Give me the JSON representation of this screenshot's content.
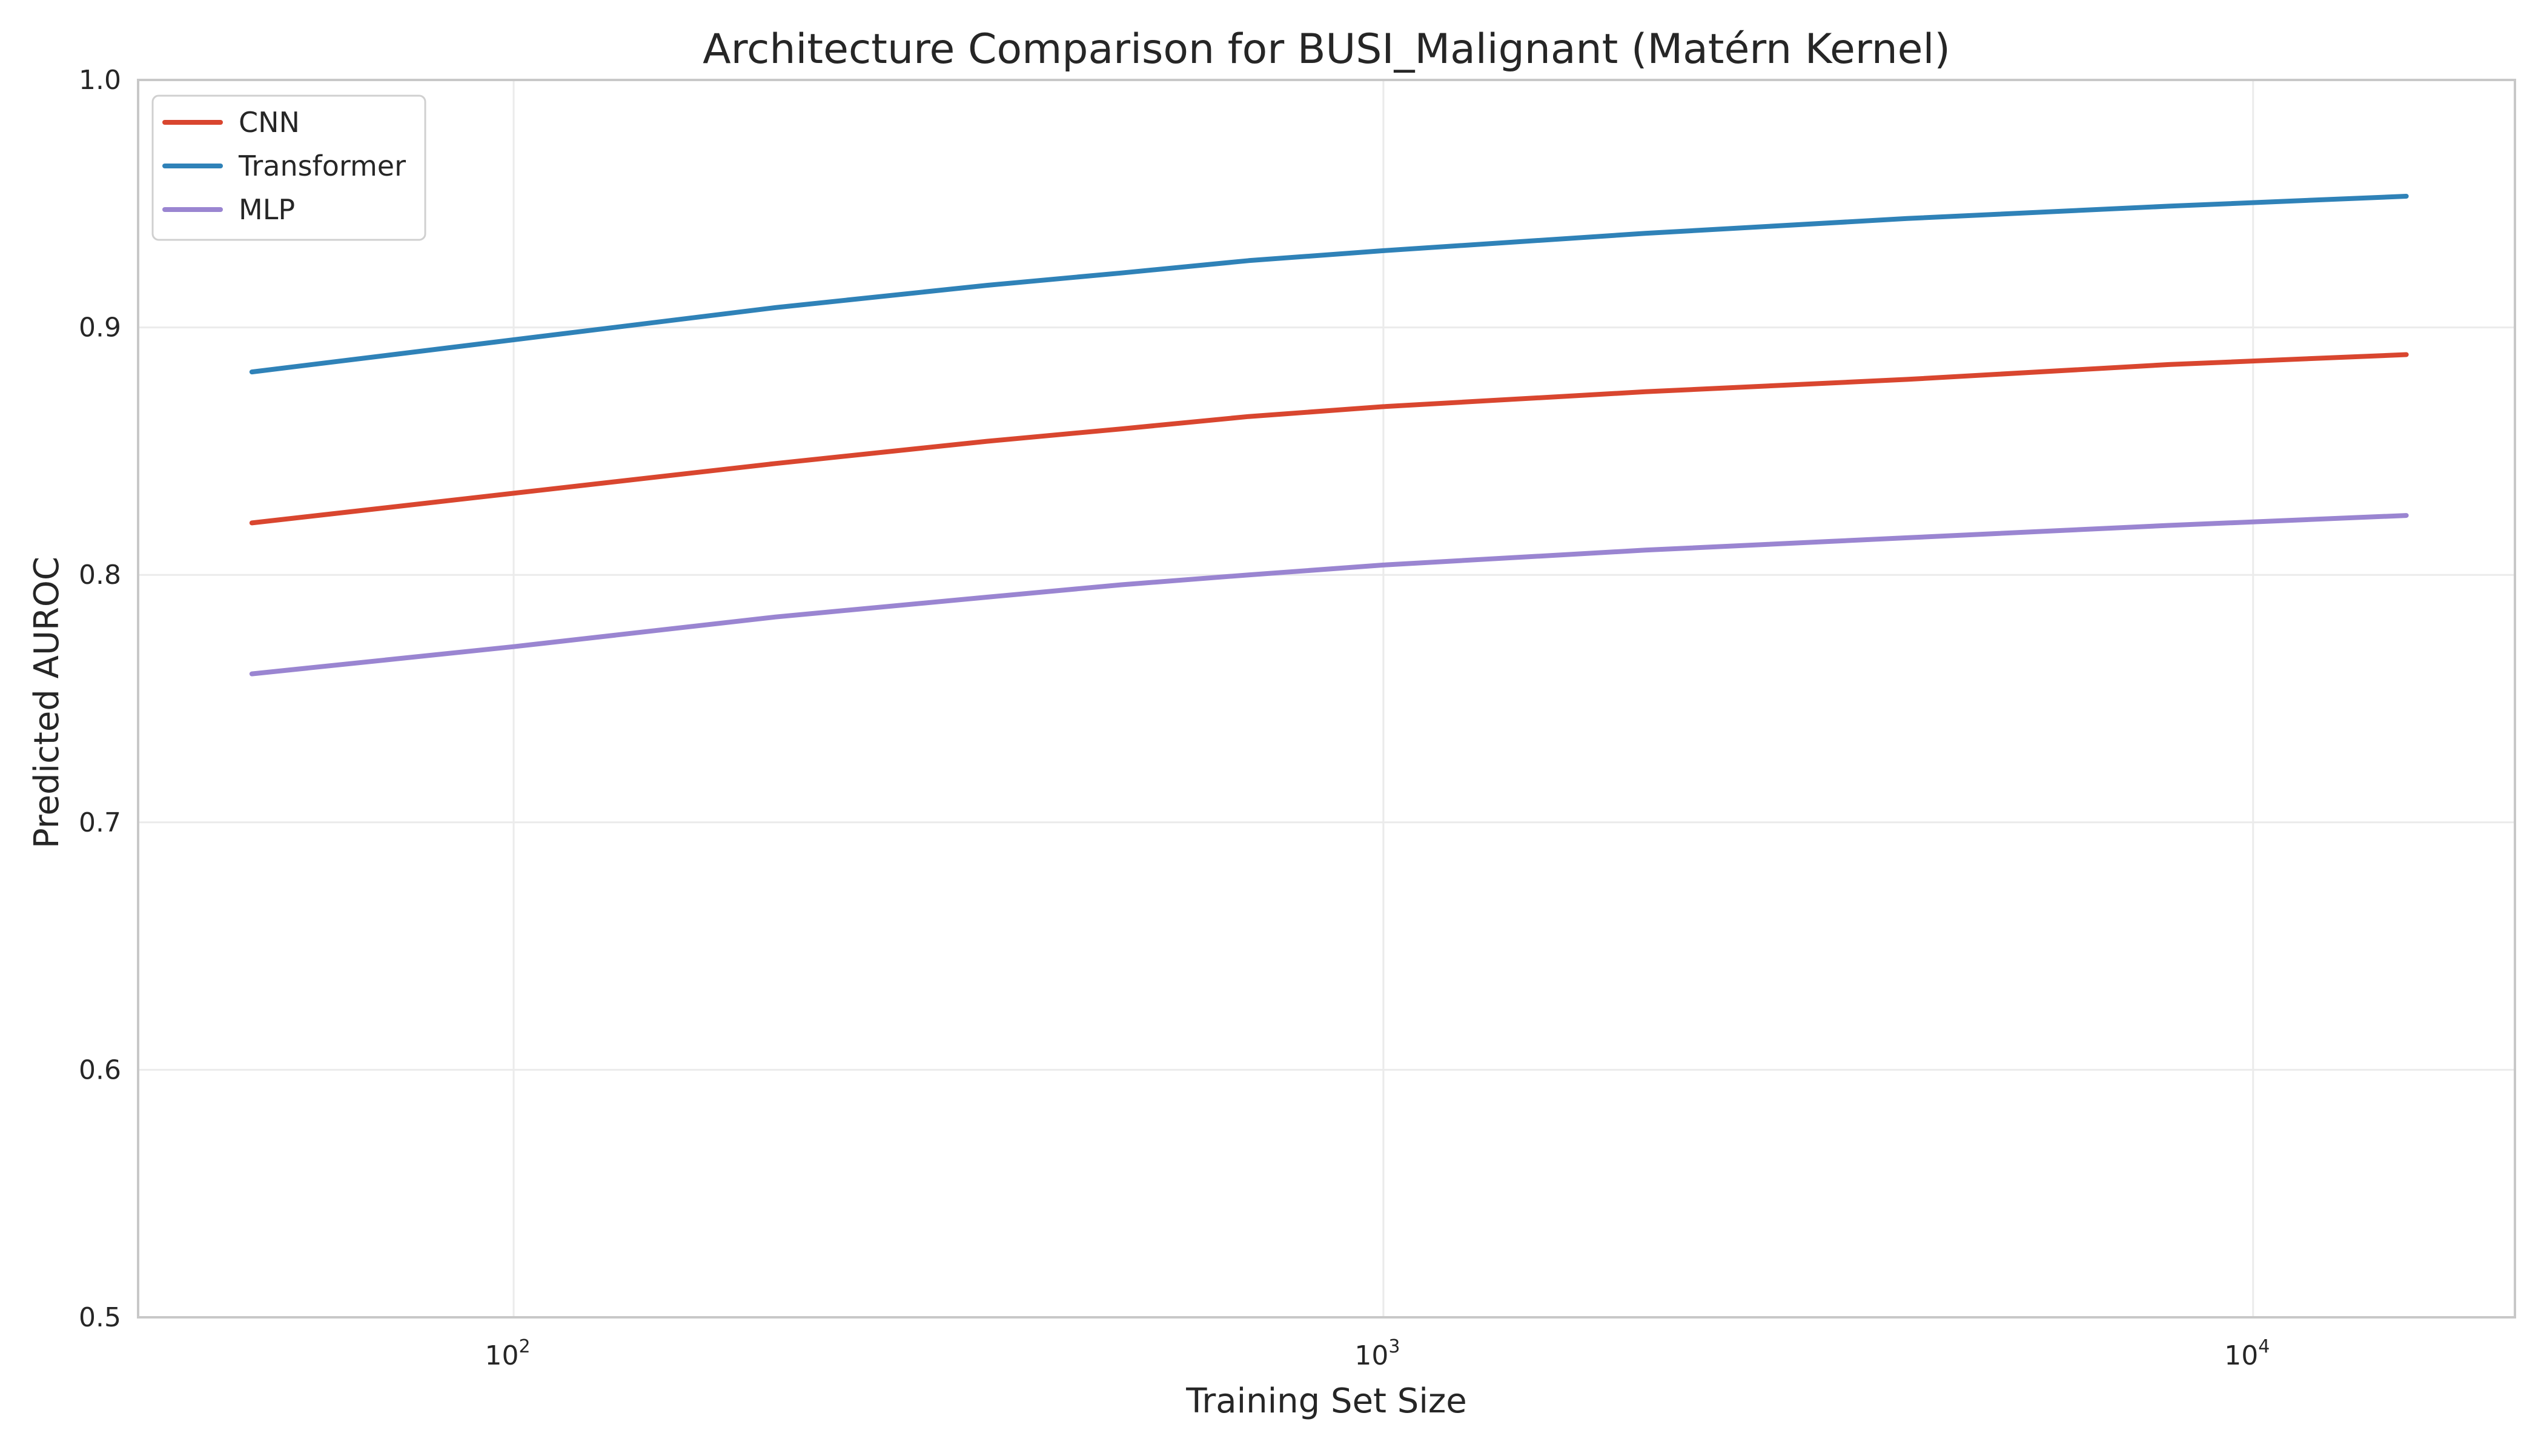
{
  "chart_data": {
    "type": "line",
    "title": "Architecture Comparison for BUSI_Malignant (Matérn Kernel)",
    "xlabel": "Training Set Size",
    "ylabel": "Predicted AUROC",
    "xscale": "log",
    "xlim": [
      37,
      20000
    ],
    "ylim": [
      0.5,
      1.0
    ],
    "grid": true,
    "legend_position": "top-left",
    "x_ticks": [
      {
        "value": 100,
        "base": "10",
        "exp": "2"
      },
      {
        "value": 1000,
        "base": "10",
        "exp": "3"
      },
      {
        "value": 10000,
        "base": "10",
        "exp": "4"
      }
    ],
    "y_ticks": [
      {
        "value": 0.5,
        "label": "0.5"
      },
      {
        "value": 0.6,
        "label": "0.6"
      },
      {
        "value": 0.7,
        "label": "0.7"
      },
      {
        "value": 0.8,
        "label": "0.8"
      },
      {
        "value": 0.9,
        "label": "0.9"
      },
      {
        "value": 1.0,
        "label": "1.0"
      }
    ],
    "series": [
      {
        "name": "CNN",
        "color": "#d9462f",
        "x": [
          50,
          100,
          200,
          350,
          500,
          700,
          1000,
          2000,
          4000,
          8000,
          15000
        ],
        "y": [
          0.821,
          0.833,
          0.845,
          0.854,
          0.859,
          0.864,
          0.868,
          0.874,
          0.879,
          0.885,
          0.889
        ]
      },
      {
        "name": "Transformer",
        "color": "#2f82b8",
        "x": [
          50,
          100,
          200,
          350,
          500,
          700,
          1000,
          2000,
          4000,
          8000,
          15000
        ],
        "y": [
          0.882,
          0.895,
          0.908,
          0.917,
          0.922,
          0.927,
          0.931,
          0.938,
          0.944,
          0.949,
          0.953
        ]
      },
      {
        "name": "MLP",
        "color": "#9a85d1",
        "x": [
          50,
          100,
          200,
          350,
          500,
          700,
          1000,
          2000,
          4000,
          8000,
          15000
        ],
        "y": [
          0.76,
          0.771,
          0.783,
          0.791,
          0.796,
          0.8,
          0.804,
          0.81,
          0.815,
          0.82,
          0.824
        ]
      }
    ]
  }
}
